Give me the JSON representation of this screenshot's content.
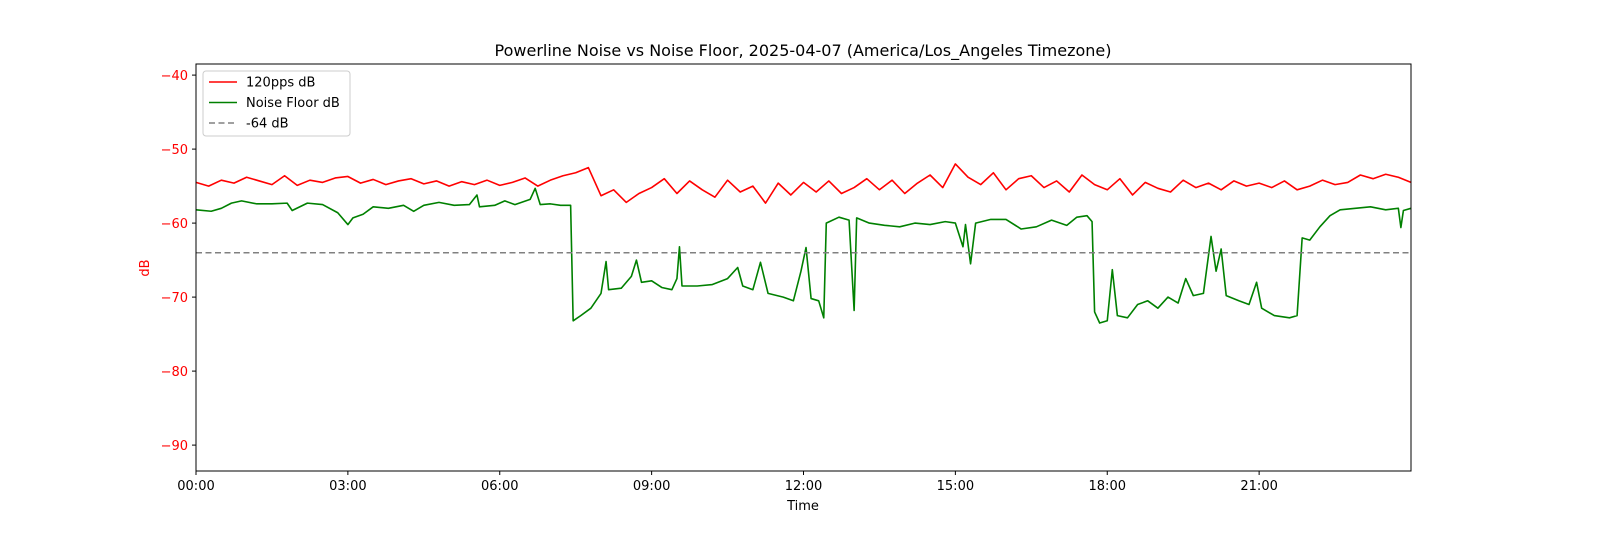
{
  "chart_data": {
    "type": "line",
    "title": "Powerline Noise vs Noise Floor, 2025-04-07 (America/Los_Angeles Timezone)",
    "xlabel": "Time",
    "ylabel": "dB",
    "xlim_hours": [
      0,
      24
    ],
    "ylim": [
      -93.5,
      -38.5
    ],
    "xticks": [
      {
        "h": 0,
        "label": "00:00"
      },
      {
        "h": 3,
        "label": "03:00"
      },
      {
        "h": 6,
        "label": "06:00"
      },
      {
        "h": 9,
        "label": "09:00"
      },
      {
        "h": 12,
        "label": "12:00"
      },
      {
        "h": 15,
        "label": "15:00"
      },
      {
        "h": 18,
        "label": "18:00"
      },
      {
        "h": 21,
        "label": "21:00"
      }
    ],
    "yticks": [
      {
        "v": -40,
        "label": "−40"
      },
      {
        "v": -50,
        "label": "−50"
      },
      {
        "v": -60,
        "label": "−60"
      },
      {
        "v": -70,
        "label": "−70"
      },
      {
        "v": -80,
        "label": "−80"
      },
      {
        "v": -90,
        "label": "−90"
      }
    ],
    "grid": false,
    "legend_position": "top-left",
    "series": [
      {
        "name": "120pps dB",
        "color": "#ff0000",
        "style": "solid",
        "x_step_hours": 0.25,
        "values": [
          -54.5,
          -55.0,
          -54.2,
          -54.6,
          -53.8,
          -54.3,
          -54.8,
          -53.6,
          -54.9,
          -54.2,
          -54.5,
          -53.9,
          -53.7,
          -54.6,
          -54.1,
          -54.8,
          -54.3,
          -54.0,
          -54.7,
          -54.3,
          -55.0,
          -54.4,
          -54.8,
          -54.2,
          -54.9,
          -54.5,
          -53.9,
          -55.0,
          -54.2,
          -53.6,
          -53.2,
          -52.5,
          -56.3,
          -55.5,
          -57.2,
          -56.0,
          -55.2,
          -54.0,
          -56.0,
          -54.3,
          -55.5,
          -56.5,
          -54.2,
          -55.8,
          -55.0,
          -57.3,
          -54.6,
          -56.2,
          -54.5,
          -55.8,
          -54.3,
          -56.0,
          -55.2,
          -54.0,
          -55.5,
          -54.2,
          -56.0,
          -54.6,
          -53.5,
          -55.2,
          -52.0,
          -53.8,
          -54.8,
          -53.2,
          -55.5,
          -54.0,
          -53.6,
          -55.2,
          -54.3,
          -55.8,
          -53.5,
          -54.8,
          -55.5,
          -54.0,
          -56.2,
          -54.5,
          -55.3,
          -55.8,
          -54.2,
          -55.2,
          -54.6,
          -55.5,
          -54.3,
          -55.0,
          -54.6,
          -55.2,
          -54.3,
          -55.5,
          -55.0,
          -54.2,
          -54.8,
          -54.5,
          -53.5,
          -54.0,
          -53.4,
          -53.8,
          -54.5
        ]
      },
      {
        "name": "Noise Floor dB",
        "color": "#008000",
        "style": "solid",
        "x": [
          0,
          0.3,
          0.5,
          0.7,
          0.9,
          1.2,
          1.5,
          1.8,
          1.9,
          2.2,
          2.5,
          2.8,
          3.0,
          3.1,
          3.3,
          3.5,
          3.8,
          4.1,
          4.3,
          4.5,
          4.8,
          5.1,
          5.4,
          5.55,
          5.6,
          5.9,
          6.1,
          6.3,
          6.6,
          6.7,
          6.8,
          7.0,
          7.2,
          7.4,
          7.45,
          7.6,
          7.8,
          8.0,
          8.1,
          8.15,
          8.4,
          8.6,
          8.7,
          8.8,
          9.0,
          9.2,
          9.4,
          9.5,
          9.55,
          9.6,
          9.9,
          10.2,
          10.5,
          10.7,
          10.8,
          11.0,
          11.15,
          11.3,
          11.6,
          11.8,
          11.95,
          12.05,
          12.15,
          12.3,
          12.4,
          12.45,
          12.7,
          12.9,
          13.0,
          13.05,
          13.3,
          13.6,
          13.9,
          14.2,
          14.5,
          14.8,
          15.0,
          15.15,
          15.2,
          15.3,
          15.4,
          15.7,
          16.0,
          16.3,
          16.6,
          16.9,
          17.2,
          17.4,
          17.6,
          17.7,
          17.75,
          17.85,
          18.0,
          18.1,
          18.2,
          18.4,
          18.6,
          18.8,
          19.0,
          19.2,
          19.4,
          19.55,
          19.7,
          19.9,
          20.05,
          20.15,
          20.25,
          20.35,
          20.6,
          20.8,
          20.95,
          21.05,
          21.3,
          21.6,
          21.75,
          21.85,
          22.0,
          22.2,
          22.4,
          22.6,
          22.9,
          23.2,
          23.5,
          23.75,
          23.8,
          23.85,
          24.0
        ],
        "values": [
          -58.2,
          -58.4,
          -58.0,
          -57.3,
          -57.0,
          -57.4,
          -57.4,
          -57.3,
          -58.3,
          -57.3,
          -57.5,
          -58.6,
          -60.2,
          -59.3,
          -58.8,
          -57.8,
          -58.0,
          -57.6,
          -58.4,
          -57.6,
          -57.2,
          -57.6,
          -57.5,
          -56.2,
          -57.8,
          -57.6,
          -57.0,
          -57.5,
          -56.8,
          -55.3,
          -57.5,
          -57.4,
          -57.6,
          -57.6,
          -73.2,
          -72.5,
          -71.5,
          -69.5,
          -65.2,
          -69.0,
          -68.8,
          -67.2,
          -65.0,
          -68.0,
          -67.8,
          -68.7,
          -69.0,
          -67.5,
          -63.2,
          -68.5,
          -68.5,
          -68.3,
          -67.5,
          -66.0,
          -68.5,
          -69.0,
          -65.3,
          -69.5,
          -70.0,
          -70.5,
          -66.5,
          -63.3,
          -70.2,
          -70.5,
          -72.8,
          -60.0,
          -59.2,
          -59.6,
          -71.8,
          -59.3,
          -60.0,
          -60.3,
          -60.5,
          -60.0,
          -60.2,
          -59.8,
          -60.0,
          -63.2,
          -60.2,
          -65.5,
          -60.0,
          -59.5,
          -59.5,
          -60.8,
          -60.5,
          -59.6,
          -60.3,
          -59.2,
          -59.0,
          -59.8,
          -72.0,
          -73.5,
          -73.2,
          -66.3,
          -72.5,
          -72.8,
          -71.0,
          -70.5,
          -71.5,
          -70.0,
          -70.8,
          -67.5,
          -69.8,
          -69.5,
          -61.8,
          -66.5,
          -63.5,
          -69.8,
          -70.5,
          -71.0,
          -68.0,
          -71.5,
          -72.5,
          -72.8,
          -72.5,
          -62.0,
          -62.3,
          -60.5,
          -59.0,
          -58.2,
          -58.0,
          -57.8,
          -58.2,
          -58.0,
          -60.6,
          -58.3,
          -58.0
        ]
      },
      {
        "name": "-64 dB",
        "color": "#808080",
        "style": "dashed",
        "constant": -64
      }
    ]
  }
}
